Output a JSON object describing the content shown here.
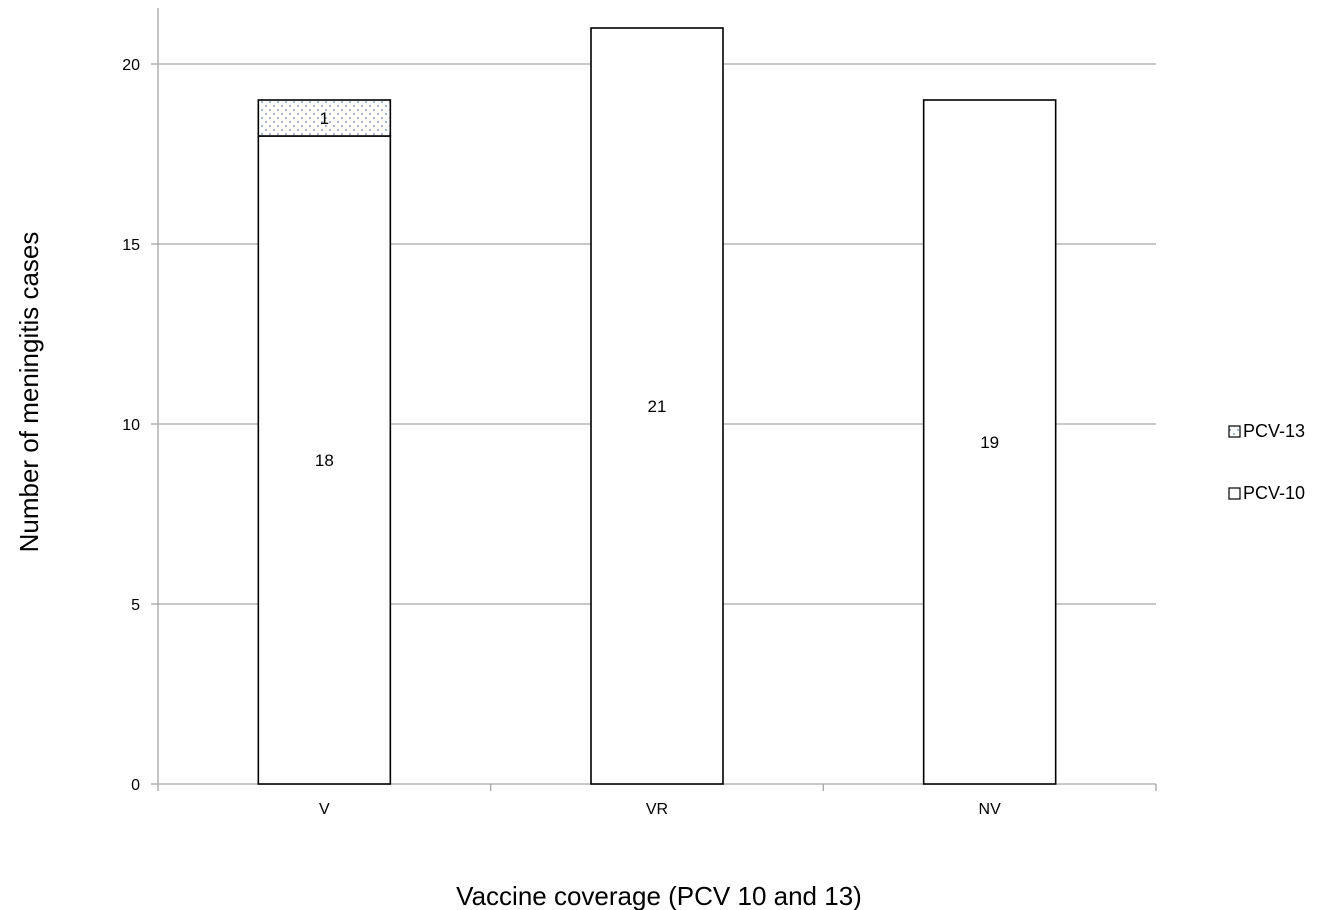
{
  "chart_data": {
    "type": "bar",
    "stacked": true,
    "categories": [
      "V",
      "VR",
      "NV"
    ],
    "series": [
      {
        "name": "PCV-10",
        "values": [
          18,
          21,
          19
        ],
        "fill": "#ffffff",
        "pattern": "none"
      },
      {
        "name": "PCV-13",
        "values": [
          1,
          0,
          0
        ],
        "fill": "#ffffff",
        "pattern": "dotted-blue"
      }
    ],
    "data_labels": [
      [
        "18",
        "21",
        "19"
      ],
      [
        "1",
        "",
        ""
      ]
    ],
    "title": "",
    "xlabel": "Vaccine coverage (PCV 10 and 13)",
    "ylabel": "Number of meningitis cases",
    "ylim": [
      0,
      21.5
    ],
    "yticks": [
      0,
      5,
      10,
      15,
      20
    ],
    "grid": true,
    "legend_position": "right",
    "colors": {
      "gridline": "#a6a6a6",
      "bar_stroke": "#000000",
      "dot": "#6a7fb5"
    }
  }
}
